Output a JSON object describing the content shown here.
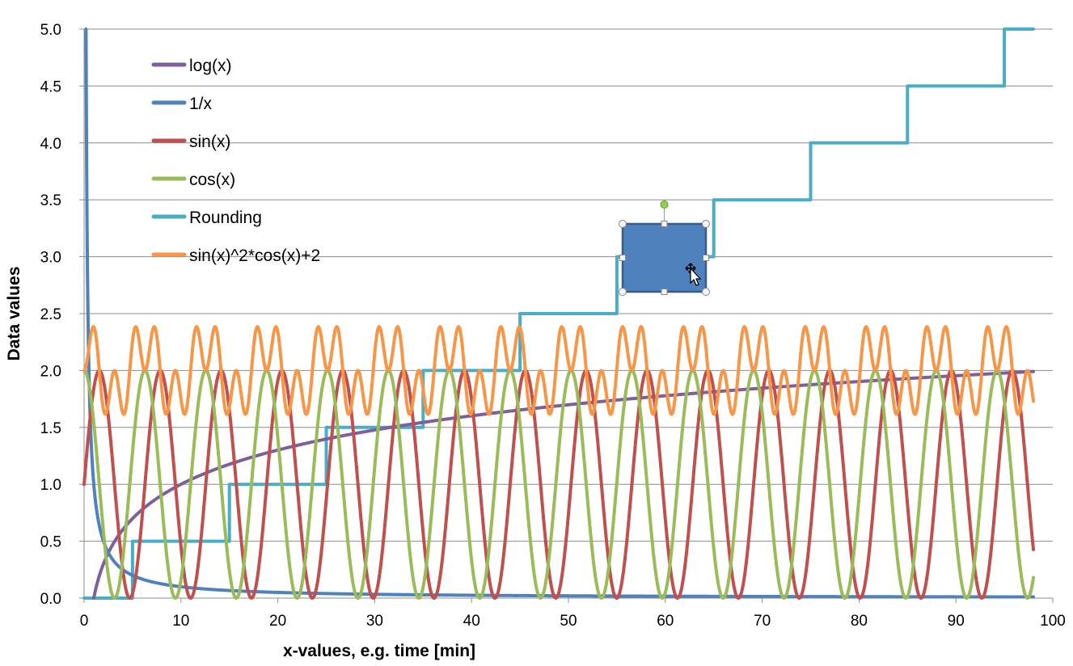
{
  "chart_data": {
    "type": "line",
    "xlabel": "x-values, e.g. time [min]",
    "ylabel": "Data values",
    "xlim": [
      0,
      100
    ],
    "ylim": [
      0,
      5
    ],
    "x_ticks": [
      "0",
      "10",
      "20",
      "30",
      "40",
      "50",
      "60",
      "70",
      "80",
      "90",
      "100"
    ],
    "y_ticks": [
      "0.0",
      "0.5",
      "1.0",
      "1.5",
      "2.0",
      "2.5",
      "3.0",
      "3.5",
      "4.0",
      "4.5",
      "5.0"
    ],
    "grid": "horizontal",
    "legend_position": "top-left",
    "x_range": [
      0,
      98
    ],
    "series": [
      {
        "name": "log(x)",
        "color": "#7d5fa0",
        "formula": "log10(x)"
      },
      {
        "name": "1/x",
        "color": "#4f81bd",
        "formula": "1/x"
      },
      {
        "name": "sin(x)",
        "color": "#c0504d",
        "formula": "sin(x)+1"
      },
      {
        "name": "cos(x)",
        "color": "#9bbb59",
        "formula": "cos(x)+1"
      },
      {
        "name": "Rounding",
        "color": "#4bacc6",
        "formula": "steps of 0.5 every 10 (rounded x/20)",
        "points": [
          [
            0,
            0
          ],
          [
            5,
            0
          ],
          [
            5,
            0.5
          ],
          [
            15,
            0.5
          ],
          [
            15,
            1
          ],
          [
            25,
            1
          ],
          [
            25,
            1.5
          ],
          [
            35,
            1.5
          ],
          [
            35,
            2
          ],
          [
            45,
            2
          ],
          [
            45,
            2.5
          ],
          [
            55,
            2.5
          ],
          [
            55,
            3
          ],
          [
            65,
            3
          ],
          [
            65,
            3.5
          ],
          [
            75,
            3.5
          ],
          [
            75,
            4
          ],
          [
            85,
            4
          ],
          [
            85,
            4.5
          ],
          [
            95,
            4.5
          ],
          [
            95,
            5
          ],
          [
            98,
            5
          ]
        ]
      },
      {
        "name": "sin(x)^2*cos(x)+2",
        "color": "#f79646",
        "formula": "sin(x)^2*cos(x)+2"
      }
    ]
  },
  "overlay_shape": {
    "fill": "#4f81bd",
    "stroke": "#385d8a"
  }
}
